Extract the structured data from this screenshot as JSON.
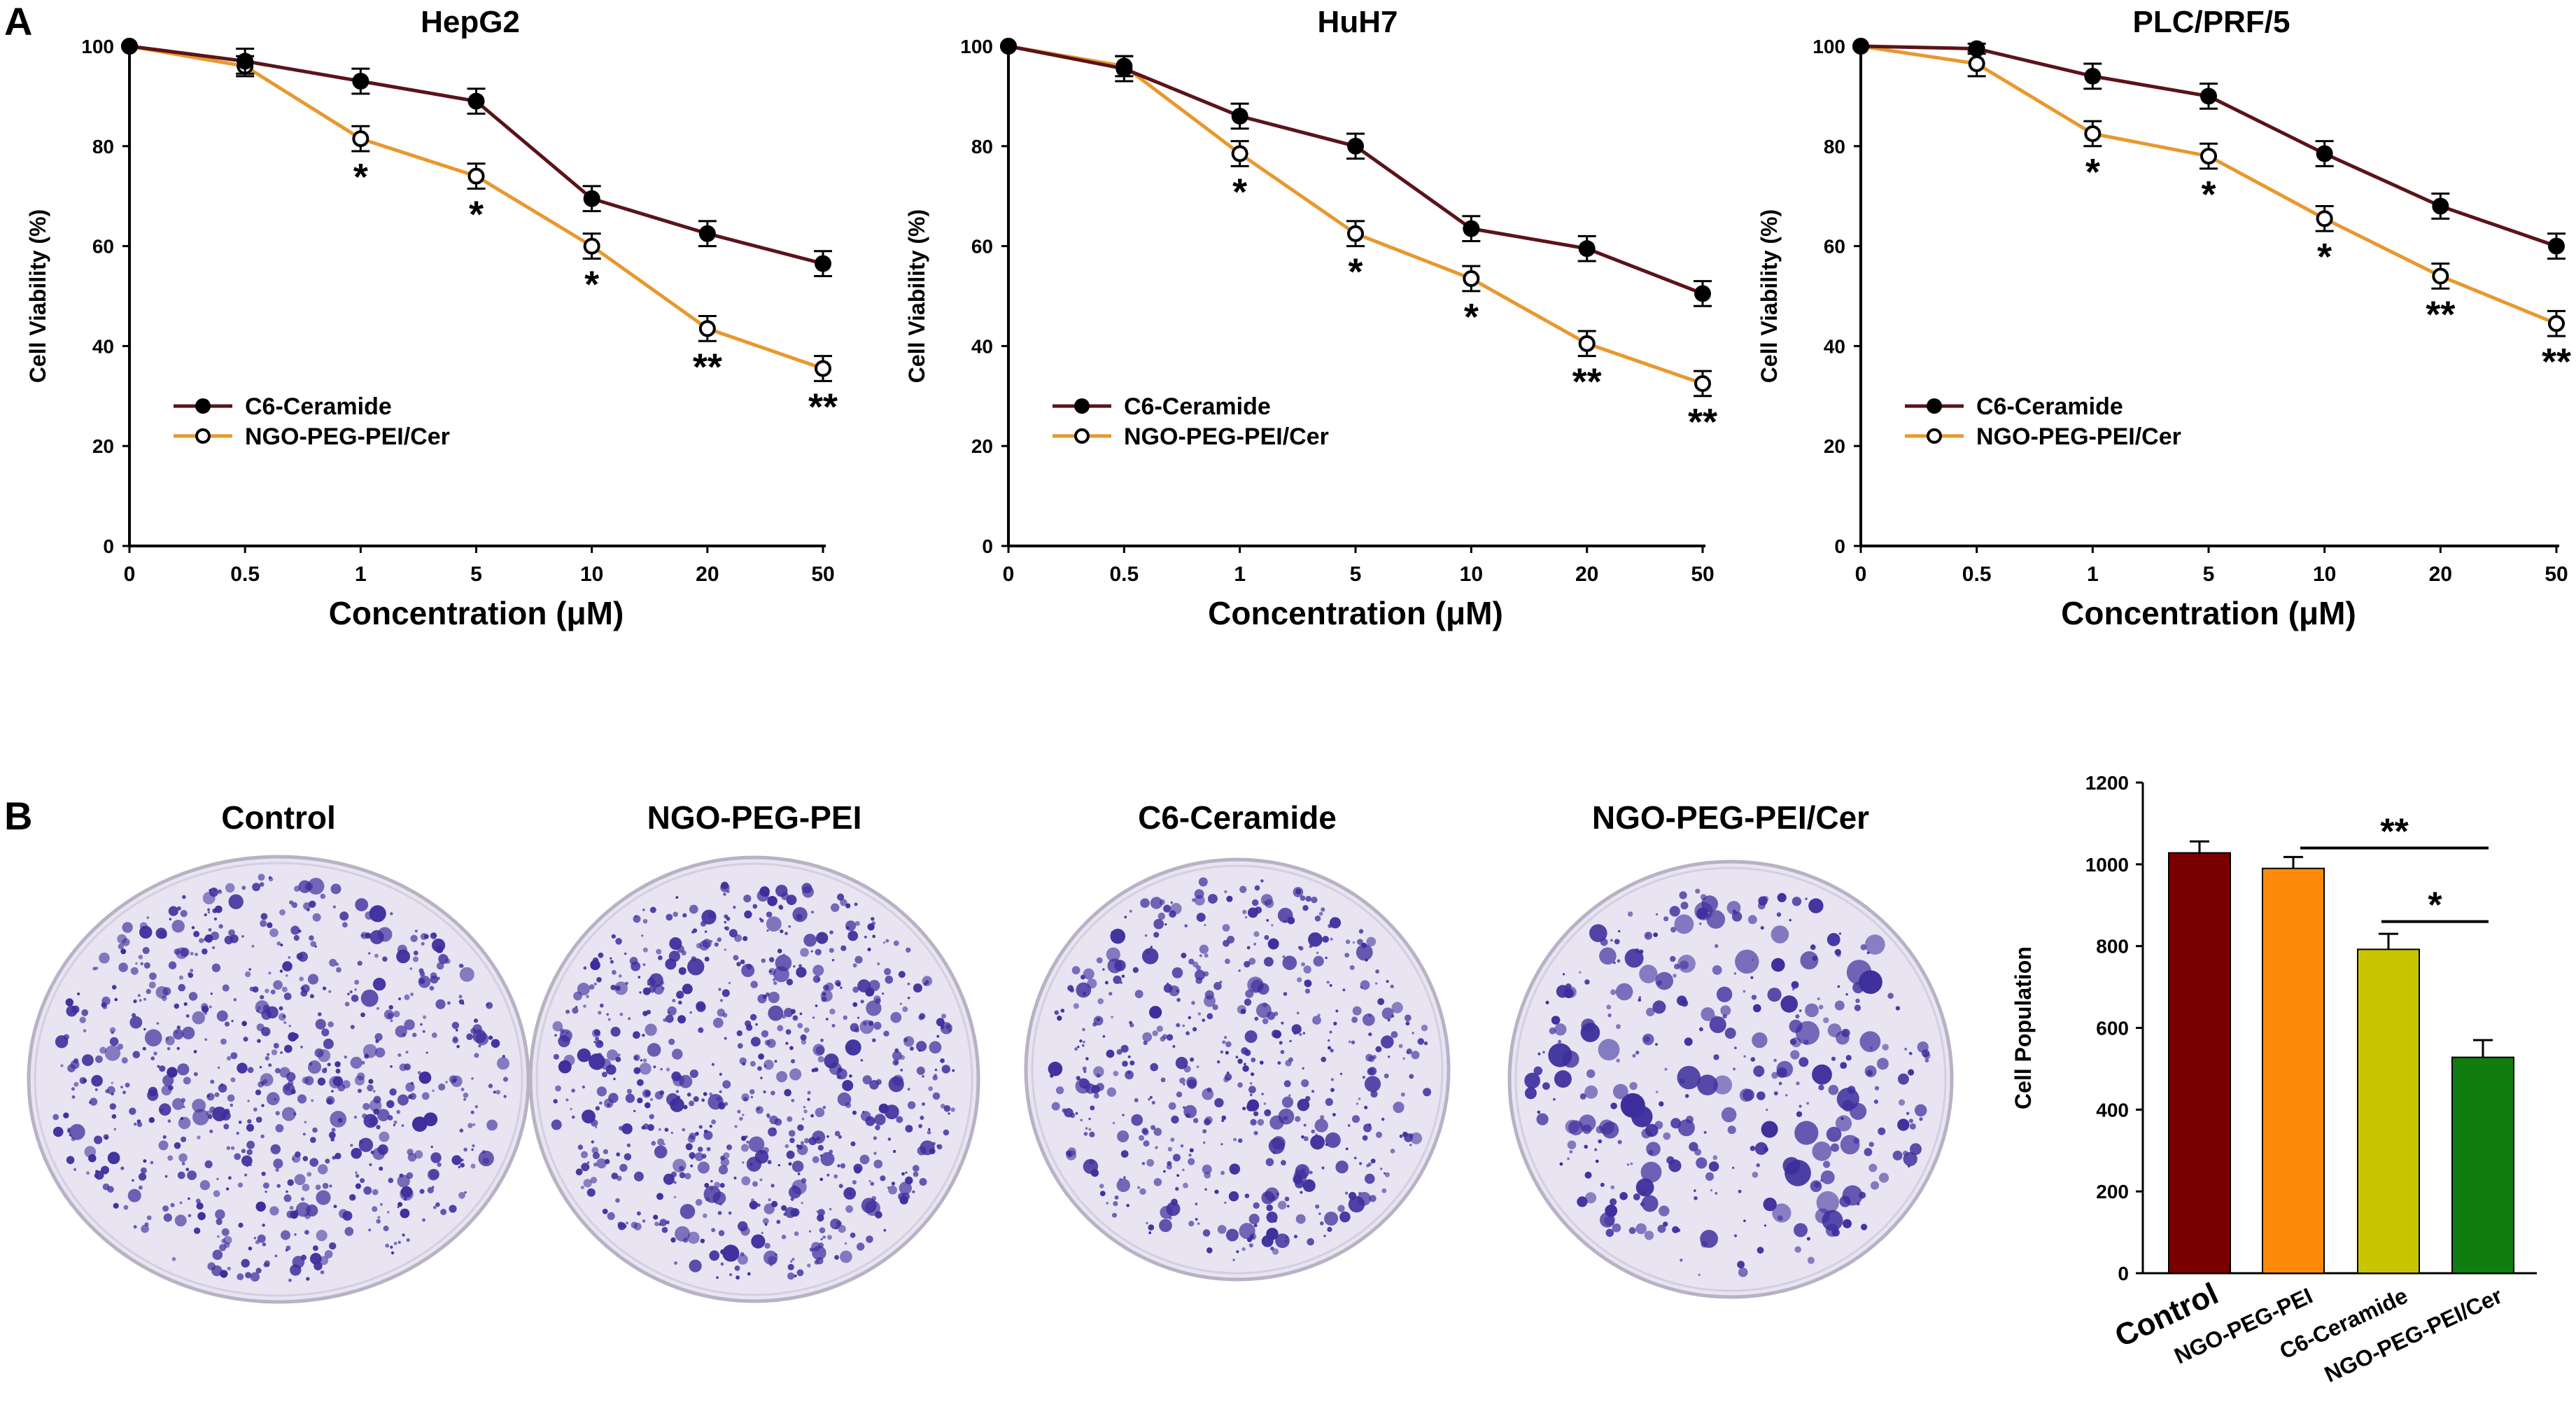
{
  "panel_labels": {
    "a": "A",
    "b": "B"
  },
  "colors": {
    "line_c6": "#5a1419",
    "line_ngo": "#e8982e",
    "axis": "#000000",
    "plate_bg": "#e9e4f2",
    "colony": "#3d2e9c",
    "bar_control": "#7a0000",
    "bar_ngo_peg_pei": "#ff8a0a",
    "bar_c6": "#c8c400",
    "bar_ngo_cer": "#0f7d0f"
  },
  "legend": {
    "series1": "C6-Ceramide",
    "series2": "NGO-PEG-PEI/Cer"
  },
  "plates": {
    "labels": [
      "Control",
      "NGO-PEG-PEI",
      "C6-Ceramide",
      "NGO-PEG-PEI/Cer"
    ],
    "colony_density": [
      "high",
      "high",
      "medium",
      "low"
    ]
  },
  "chart_data": [
    {
      "type": "line",
      "title": "HepG2",
      "xlabel": "Concentration (μM)",
      "ylabel": "Cell Viability (%)",
      "categories": [
        "0",
        "0.5",
        "1",
        "5",
        "10",
        "20",
        "50"
      ],
      "yticks": [
        0,
        20,
        40,
        60,
        80,
        100
      ],
      "ylim": [
        0,
        100
      ],
      "series": [
        {
          "name": "C6-Ceramide",
          "marker": "filled",
          "values": [
            100,
            97,
            93,
            89,
            69.5,
            62.5,
            56.5
          ],
          "errors": [
            0,
            2.5,
            2.5,
            2.5,
            2.5,
            2.5,
            2.5
          ]
        },
        {
          "name": "NGO-PEG-PEI/Cer",
          "marker": "open",
          "values": [
            100,
            96,
            81.5,
            74,
            60,
            43.5,
            35.5
          ],
          "errors": [
            0,
            2,
            2.5,
            2.5,
            2.5,
            2.5,
            2.5
          ]
        }
      ],
      "annotations": [
        "",
        "",
        "*",
        "*",
        "*",
        "**",
        "**"
      ]
    },
    {
      "type": "line",
      "title": "HuH7",
      "xlabel": "Concentration (μM)",
      "ylabel": "Cell Viability (%)",
      "categories": [
        "0",
        "0.5",
        "1",
        "5",
        "10",
        "20",
        "50"
      ],
      "yticks": [
        0,
        20,
        40,
        60,
        80,
        100
      ],
      "ylim": [
        0,
        100
      ],
      "series": [
        {
          "name": "C6-Ceramide",
          "marker": "filled",
          "values": [
            100,
            95.5,
            86,
            80,
            63.5,
            59.5,
            50.5
          ],
          "errors": [
            0,
            2.5,
            2.5,
            2.5,
            2.5,
            2.5,
            2.5
          ]
        },
        {
          "name": "NGO-PEG-PEI/Cer",
          "marker": "open",
          "values": [
            100,
            96,
            78.5,
            62.5,
            53.5,
            40.5,
            32.5
          ],
          "errors": [
            0,
            2,
            2.5,
            2.5,
            2.5,
            2.5,
            2.5
          ]
        }
      ],
      "annotations": [
        "",
        "",
        "*",
        "*",
        "*",
        "**",
        "**"
      ]
    },
    {
      "type": "line",
      "title": "PLC/PRF/5",
      "xlabel": "Concentration (μM)",
      "ylabel": "Cell Viability (%)",
      "categories": [
        "0",
        "0.5",
        "1",
        "5",
        "10",
        "20",
        "50"
      ],
      "yticks": [
        0,
        20,
        40,
        60,
        80,
        100
      ],
      "ylim": [
        0,
        100
      ],
      "series": [
        {
          "name": "C6-Ceramide",
          "marker": "filled",
          "values": [
            100,
            99.5,
            94,
            90,
            78.5,
            68,
            60
          ],
          "errors": [
            0,
            1,
            2.5,
            2.5,
            2.5,
            2.5,
            2.5
          ]
        },
        {
          "name": "NGO-PEG-PEI/Cer",
          "marker": "open",
          "values": [
            100,
            96.5,
            82.5,
            78,
            65.5,
            54,
            44.5
          ],
          "errors": [
            0,
            2.5,
            2.5,
            2.5,
            2.5,
            2.5,
            2.5
          ]
        }
      ],
      "annotations": [
        "",
        "",
        "*",
        "*",
        "*",
        "**",
        "**"
      ]
    },
    {
      "type": "bar",
      "title": "",
      "xlabel": "",
      "ylabel": "Cell Population",
      "categories": [
        "Control",
        "NGO-PEG-PEI",
        "C6-Ceramide",
        "NGO-PEG-PEI/Cer"
      ],
      "values": [
        1028,
        990,
        792,
        528
      ],
      "errors": [
        28,
        28,
        38,
        42
      ],
      "yticks": [
        0,
        200,
        400,
        600,
        800,
        1000,
        1200
      ],
      "ylim": [
        0,
        1200
      ],
      "significance": [
        {
          "from": 1,
          "to": 3,
          "label": "**"
        },
        {
          "from": 2,
          "to": 3,
          "label": "*"
        }
      ]
    }
  ]
}
